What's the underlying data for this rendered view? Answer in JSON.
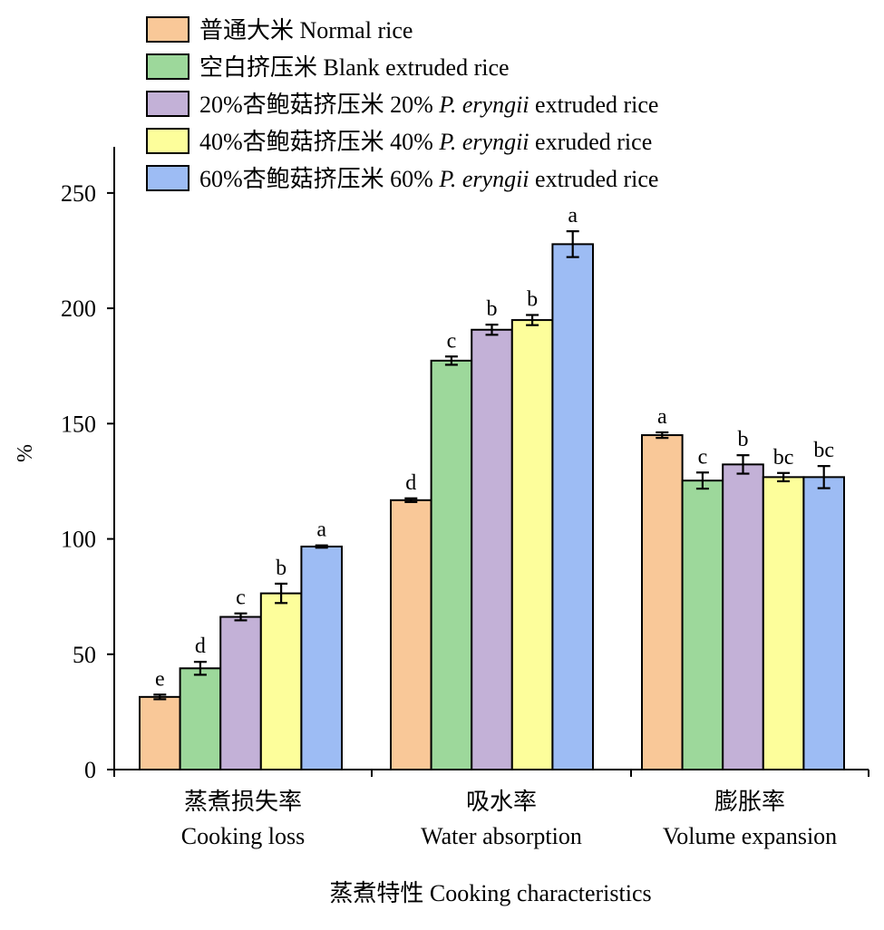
{
  "chart_data": {
    "type": "bar",
    "ylabel": "%",
    "xlabel": "蒸煮特性 Cooking characteristics",
    "ylim": [
      0,
      270
    ],
    "yticks": [
      0,
      50,
      100,
      150,
      200,
      250
    ],
    "grid": false,
    "legend_position": "top-left",
    "categories": [
      {
        "zh": "蒸煮损失率",
        "en": "Cooking loss"
      },
      {
        "zh": "吸水率",
        "en": "Water absorption"
      },
      {
        "zh": "膨胀率",
        "en": "Volume expansion"
      }
    ],
    "series": [
      {
        "legend_zh": "普通大米",
        "legend_en": "Normal rice",
        "legend_prefix": "",
        "legend_italic": "",
        "legend_suffix": "",
        "color": "#f9c898",
        "values": [
          31.5,
          116.8,
          145.0
        ],
        "errors": [
          1.0,
          0.8,
          1.2
        ],
        "letters": [
          "e",
          "d",
          "a"
        ]
      },
      {
        "legend_zh": "空白挤压米",
        "legend_en": "Blank extruded rice",
        "legend_prefix": "",
        "legend_italic": "",
        "legend_suffix": "",
        "color": "#9dd89b",
        "values": [
          43.9,
          177.3,
          125.3
        ],
        "errors": [
          2.8,
          1.8,
          3.5
        ],
        "letters": [
          "d",
          "c",
          "c"
        ]
      },
      {
        "legend_zh": "20%杏鲍菇挤压米",
        "legend_en": "",
        "legend_prefix": "20% ",
        "legend_italic": "P. eryngii",
        "legend_suffix": " extruded rice",
        "color": "#c3b1d7",
        "values": [
          66.2,
          190.7,
          132.3
        ],
        "errors": [
          1.5,
          2.2,
          4.0
        ],
        "letters": [
          "c",
          "b",
          "b"
        ]
      },
      {
        "legend_zh": "40%杏鲍菇挤压米",
        "legend_en": "",
        "legend_prefix": "40% ",
        "legend_italic": "P. eryngii",
        "legend_suffix": " exruded rice",
        "color": "#fdfe9b",
        "values": [
          76.4,
          194.9,
          126.8
        ],
        "errors": [
          4.2,
          2.2,
          1.8
        ],
        "letters": [
          "b",
          "b",
          "bc"
        ]
      },
      {
        "legend_zh": "60%杏鲍菇挤压米",
        "legend_en": "",
        "legend_prefix": "60% ",
        "legend_italic": "P. eryngii",
        "legend_suffix": " extruded rice",
        "color": "#9dbcf4",
        "values": [
          96.7,
          227.8,
          126.8
        ],
        "errors": [
          0.5,
          5.6,
          4.8
        ],
        "letters": [
          "a",
          "a",
          "bc"
        ]
      }
    ]
  }
}
